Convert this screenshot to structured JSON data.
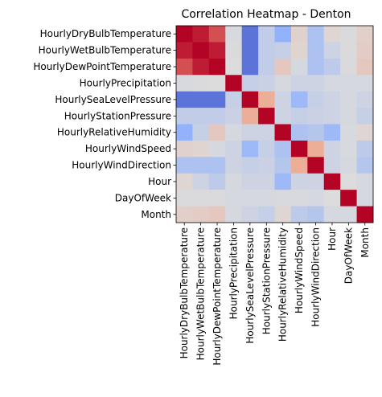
{
  "chart_data": {
    "type": "heatmap",
    "title": "Correlation Heatmap - Denton",
    "xlabel": "",
    "ylabel": "",
    "colormap": "coolwarm",
    "vmin": -1,
    "vmax": 1,
    "variables": [
      "HourlyDryBulbTemperature",
      "HourlyWetBulbTemperature",
      "HourlyDewPointTemperature",
      "HourlyPrecipitation",
      "HourlySeaLevelPressure",
      "HourlyStationPressure",
      "HourlyRelativeHumidity",
      "HourlyWindSpeed",
      "HourlyWindDirection",
      "Hour",
      "DayOfWeek",
      "Month"
    ],
    "matrix": [
      [
        1.0,
        0.92,
        0.75,
        -0.03,
        -0.8,
        -0.18,
        -0.47,
        0.08,
        -0.3,
        0.05,
        -0.02,
        0.1
      ],
      [
        0.92,
        1.0,
        0.92,
        -0.02,
        -0.8,
        -0.18,
        -0.15,
        0.06,
        -0.3,
        -0.1,
        -0.02,
        0.12
      ],
      [
        0.75,
        0.92,
        1.0,
        0.0,
        -0.8,
        -0.18,
        0.15,
        -0.05,
        -0.3,
        -0.2,
        -0.02,
        0.15
      ],
      [
        -0.03,
        -0.02,
        0.0,
        1.0,
        -0.15,
        -0.12,
        -0.05,
        -0.1,
        -0.1,
        -0.05,
        -0.05,
        -0.05
      ],
      [
        -0.8,
        -0.8,
        -0.8,
        -0.15,
        1.0,
        0.35,
        -0.1,
        -0.4,
        -0.15,
        -0.1,
        -0.05,
        -0.1
      ],
      [
        -0.18,
        -0.18,
        -0.18,
        -0.12,
        0.35,
        1.0,
        -0.1,
        -0.15,
        -0.12,
        -0.1,
        -0.05,
        -0.15
      ],
      [
        -0.47,
        -0.15,
        0.15,
        -0.05,
        -0.1,
        -0.1,
        1.0,
        -0.3,
        -0.25,
        -0.4,
        -0.03,
        0.05
      ],
      [
        0.08,
        0.06,
        -0.05,
        -0.1,
        -0.4,
        -0.15,
        -0.3,
        1.0,
        0.35,
        -0.1,
        -0.03,
        -0.2
      ],
      [
        -0.3,
        -0.3,
        -0.3,
        -0.1,
        -0.15,
        -0.12,
        -0.25,
        0.35,
        1.0,
        -0.1,
        -0.05,
        -0.25
      ],
      [
        0.05,
        -0.1,
        -0.2,
        -0.05,
        -0.1,
        -0.1,
        -0.4,
        -0.1,
        -0.1,
        1.0,
        0.0,
        -0.05
      ],
      [
        -0.02,
        -0.02,
        -0.02,
        -0.05,
        -0.05,
        -0.05,
        -0.03,
        -0.03,
        -0.05,
        0.0,
        1.0,
        -0.05
      ],
      [
        0.1,
        0.12,
        0.15,
        -0.05,
        -0.1,
        -0.15,
        0.05,
        -0.2,
        -0.25,
        -0.05,
        -0.05,
        1.0
      ]
    ]
  }
}
